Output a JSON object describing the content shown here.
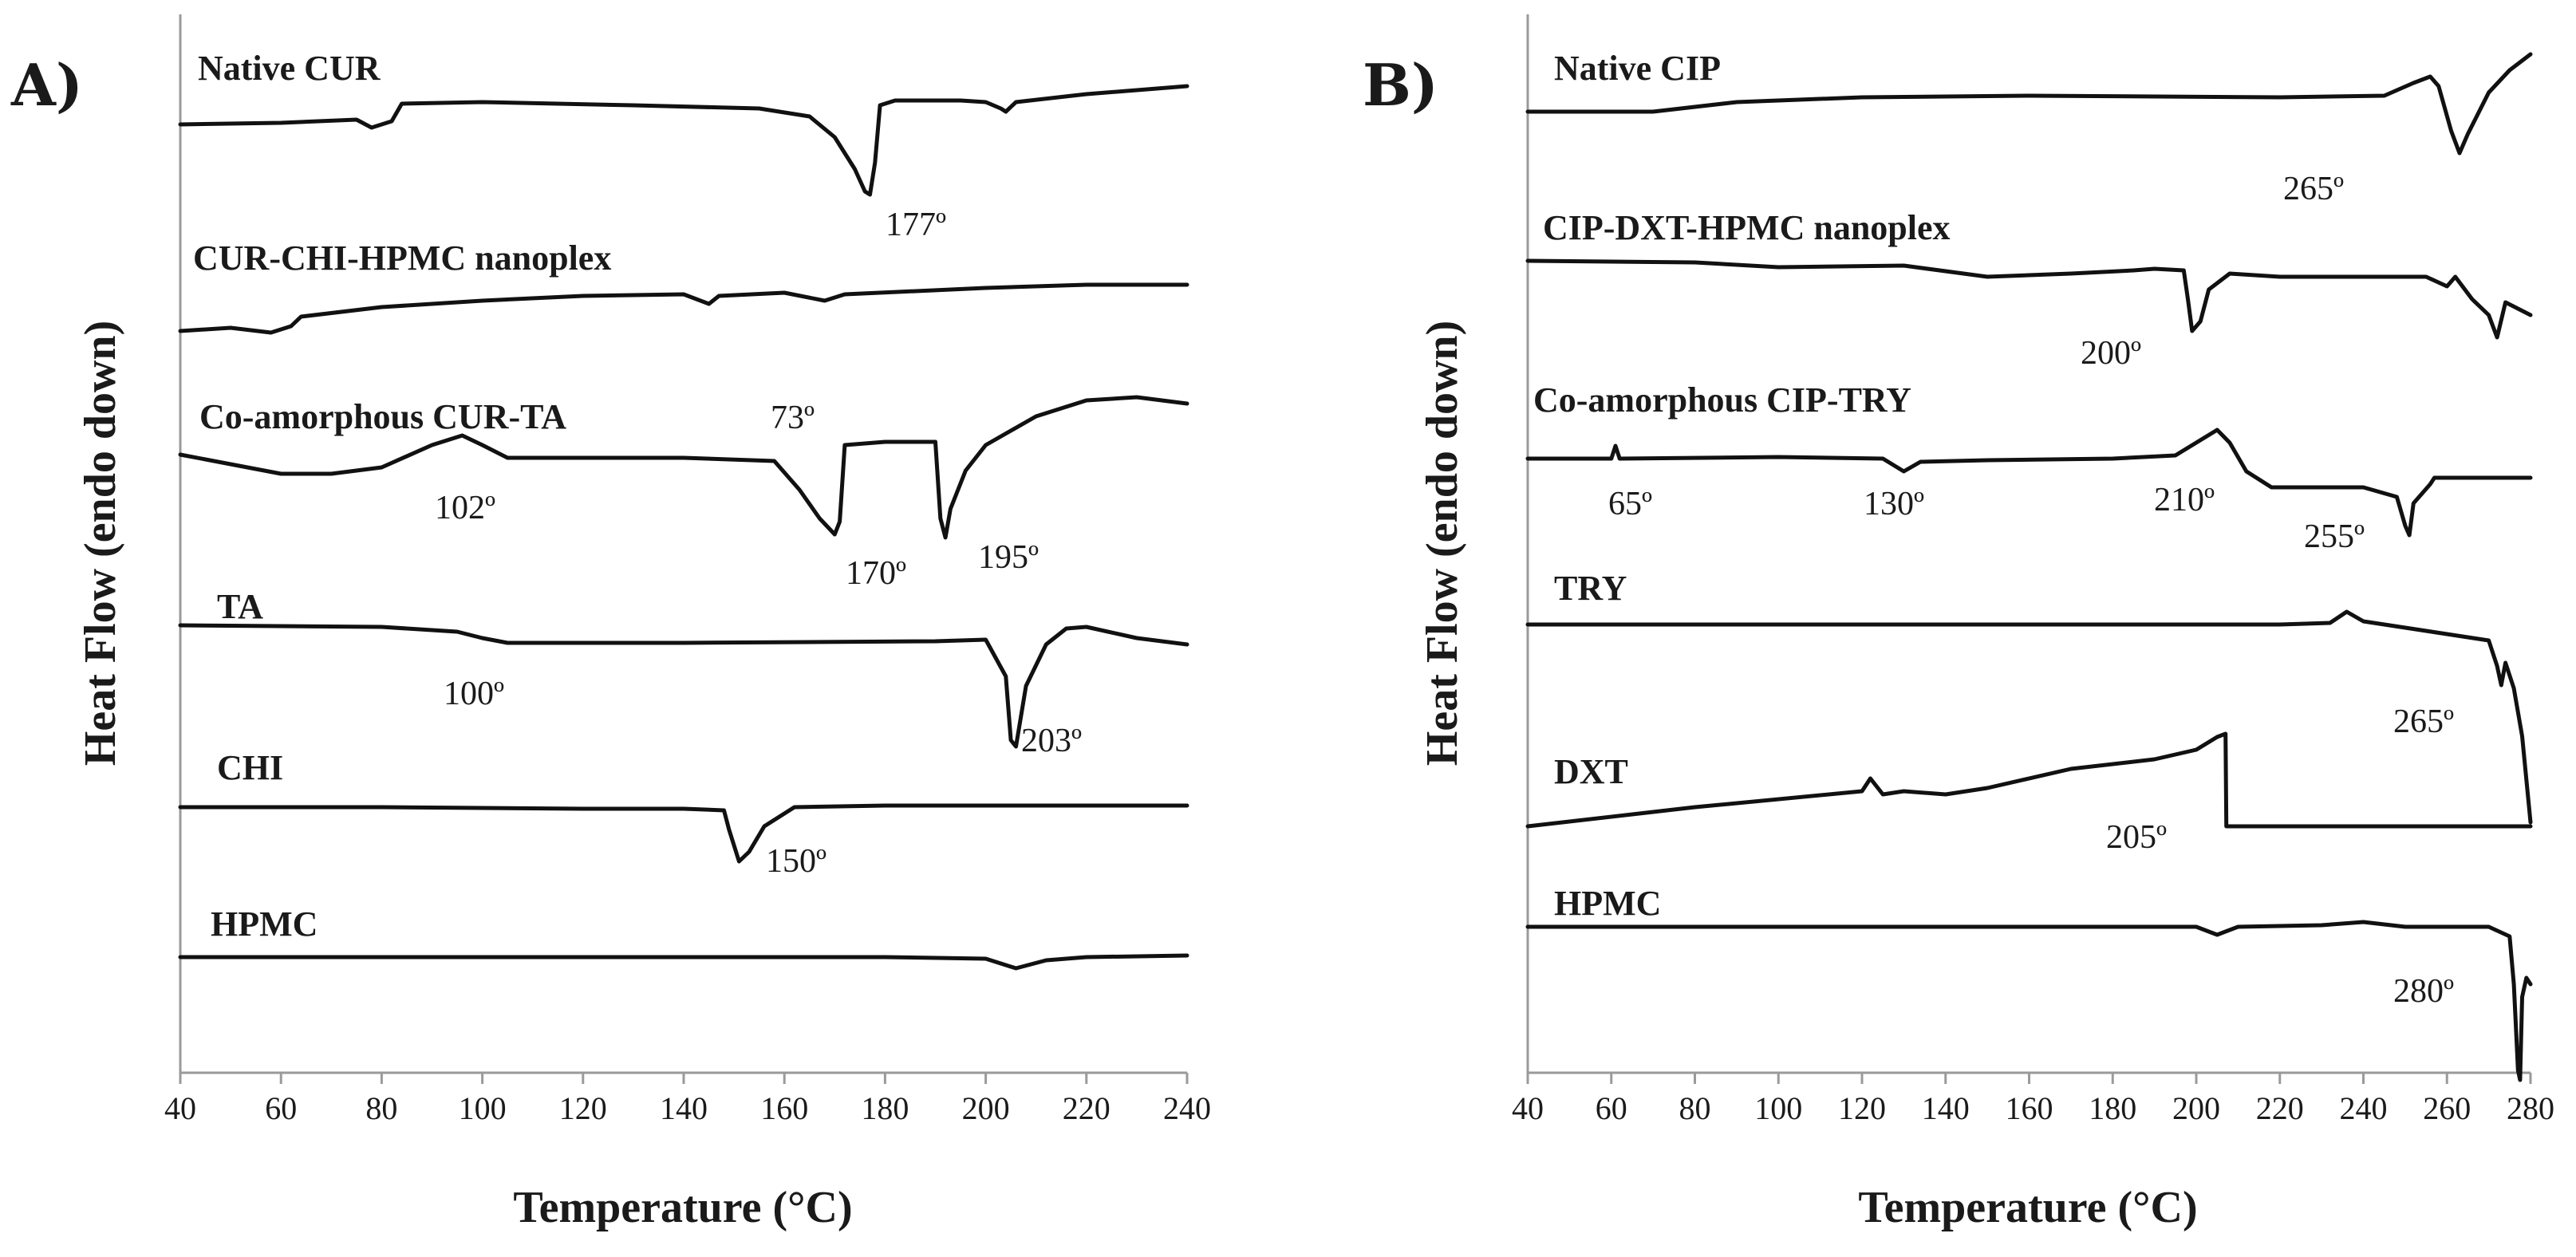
{
  "chart_data": [
    {
      "panel": "A)",
      "type": "line",
      "title": "",
      "xlabel": "Temperature (°C)",
      "ylabel": "Heat Flow (endo down)",
      "xlim": [
        40,
        240
      ],
      "xticks": [
        40,
        60,
        80,
        100,
        120,
        140,
        160,
        180,
        200,
        220,
        240
      ],
      "grid": false,
      "series": [
        {
          "name": "Native CUR",
          "points": [
            [
              40,
              -0.2
            ],
            [
              60,
              -0.15
            ],
            [
              75,
              -0.05
            ],
            [
              78,
              -0.3
            ],
            [
              82,
              -0.1
            ],
            [
              84,
              0.45
            ],
            [
              100,
              0.5
            ],
            [
              130,
              0.4
            ],
            [
              155,
              0.3
            ],
            [
              165,
              0.05
            ],
            [
              170,
              -0.6
            ],
            [
              174,
              -1.6
            ],
            [
              176,
              -2.3
            ],
            [
              177,
              -2.4
            ],
            [
              178,
              -1.4
            ],
            [
              179,
              0.4
            ],
            [
              182,
              0.55
            ],
            [
              195,
              0.55
            ],
            [
              200,
              0.5
            ],
            [
              203,
              0.3
            ],
            [
              204,
              0.2
            ],
            [
              206,
              0.5
            ],
            [
              220,
              0.75
            ],
            [
              240,
              1.0
            ]
          ],
          "annotations": [
            {
              "label": "177º",
              "x": 177,
              "y": -2.4
            }
          ]
        },
        {
          "name": "CUR-CHI-HPMC nanoplex",
          "points": [
            [
              40,
              -0.25
            ],
            [
              50,
              -0.15
            ],
            [
              58,
              -0.3
            ],
            [
              62,
              -0.1
            ],
            [
              64,
              0.2
            ],
            [
              80,
              0.5
            ],
            [
              100,
              0.7
            ],
            [
              120,
              0.85
            ],
            [
              140,
              0.9
            ],
            [
              145,
              0.6
            ],
            [
              147,
              0.85
            ],
            [
              160,
              0.95
            ],
            [
              168,
              0.7
            ],
            [
              172,
              0.9
            ],
            [
              200,
              1.1
            ],
            [
              220,
              1.2
            ],
            [
              240,
              1.2
            ]
          ],
          "annotations": []
        },
        {
          "name": "Co-amorphous CUR-TA",
          "points": [
            [
              40,
              0.2
            ],
            [
              50,
              -0.1
            ],
            [
              60,
              -0.4
            ],
            [
              70,
              -0.4
            ],
            [
              80,
              -0.2
            ],
            [
              90,
              0.5
            ],
            [
              96,
              0.8
            ],
            [
              100,
              0.5
            ],
            [
              105,
              0.1
            ],
            [
              120,
              0.1
            ],
            [
              140,
              0.1
            ],
            [
              158,
              0.0
            ],
            [
              163,
              -0.9
            ],
            [
              167,
              -1.8
            ],
            [
              170,
              -2.3
            ],
            [
              171,
              -1.9
            ],
            [
              172,
              0.5
            ],
            [
              180,
              0.6
            ],
            [
              190,
              0.6
            ],
            [
              191,
              -1.8
            ],
            [
              192,
              -2.4
            ],
            [
              193,
              -1.5
            ],
            [
              196,
              -0.3
            ],
            [
              200,
              0.5
            ],
            [
              210,
              1.4
            ],
            [
              220,
              1.9
            ],
            [
              230,
              2.0
            ],
            [
              240,
              1.8
            ]
          ],
          "annotations": [
            {
              "label": "73º",
              "x": 170,
              "y": 1.3
            },
            {
              "label": "102º",
              "x": 96,
              "y": 0.8
            },
            {
              "label": "170º",
              "x": 170,
              "y": -2.3
            },
            {
              "label": "195º",
              "x": 192,
              "y": -2.4
            }
          ]
        },
        {
          "name": "TA",
          "points": [
            [
              40,
              0.4
            ],
            [
              80,
              0.35
            ],
            [
              95,
              0.2
            ],
            [
              100,
              0.0
            ],
            [
              105,
              -0.15
            ],
            [
              140,
              -0.15
            ],
            [
              190,
              -0.1
            ],
            [
              200,
              -0.05
            ],
            [
              204,
              -1.2
            ],
            [
              205,
              -3.2
            ],
            [
              206,
              -3.4
            ],
            [
              208,
              -1.5
            ],
            [
              212,
              -0.2
            ],
            [
              216,
              0.3
            ],
            [
              220,
              0.35
            ],
            [
              230,
              0.0
            ],
            [
              240,
              -0.2
            ]
          ],
          "annotations": [
            {
              "label": "100º",
              "x": 100,
              "y": -0.15
            },
            {
              "label": "203º",
              "x": 205,
              "y": -3.4
            }
          ]
        },
        {
          "name": "CHI",
          "points": [
            [
              40,
              0.0
            ],
            [
              80,
              0.0
            ],
            [
              120,
              -0.05
            ],
            [
              140,
              -0.05
            ],
            [
              148,
              -0.1
            ],
            [
              149,
              -0.7
            ],
            [
              151,
              -1.7
            ],
            [
              153,
              -1.4
            ],
            [
              156,
              -0.6
            ],
            [
              162,
              0.0
            ],
            [
              180,
              0.05
            ],
            [
              240,
              0.05
            ]
          ],
          "annotations": [
            {
              "label": "150º",
              "x": 151,
              "y": -1.7
            }
          ]
        },
        {
          "name": "HPMC",
          "points": [
            [
              40,
              0.0
            ],
            [
              120,
              0.0
            ],
            [
              180,
              0.0
            ],
            [
              200,
              -0.05
            ],
            [
              206,
              -0.35
            ],
            [
              212,
              -0.1
            ],
            [
              220,
              0.0
            ],
            [
              240,
              0.05
            ]
          ],
          "annotations": []
        }
      ]
    },
    {
      "panel": "B)",
      "type": "line",
      "title": "",
      "xlabel": "Temperature (°C)",
      "ylabel": "Heat Flow (endo down)",
      "xlim": [
        40,
        280
      ],
      "xticks": [
        40,
        60,
        80,
        100,
        120,
        140,
        160,
        180,
        200,
        220,
        240,
        260,
        280
      ],
      "grid": false,
      "series": [
        {
          "name": "Native CIP",
          "points": [
            [
              40,
              0.0
            ],
            [
              70,
              0.0
            ],
            [
              90,
              0.3
            ],
            [
              120,
              0.45
            ],
            [
              160,
              0.5
            ],
            [
              220,
              0.45
            ],
            [
              245,
              0.5
            ],
            [
              252,
              0.9
            ],
            [
              256,
              1.1
            ],
            [
              258,
              0.8
            ],
            [
              261,
              -0.6
            ],
            [
              263,
              -1.3
            ],
            [
              265,
              -0.7
            ],
            [
              270,
              0.6
            ],
            [
              275,
              1.3
            ],
            [
              280,
              1.8
            ]
          ],
          "annotations": [
            {
              "label": "265º",
              "x": 263,
              "y": -1.3
            }
          ]
        },
        {
          "name": "CIP-DXT-HPMC nanoplex",
          "points": [
            [
              40,
              0.2
            ],
            [
              80,
              0.15
            ],
            [
              100,
              0.0
            ],
            [
              130,
              0.05
            ],
            [
              150,
              -0.3
            ],
            [
              170,
              -0.2
            ],
            [
              185,
              -0.1
            ],
            [
              190,
              -0.05
            ],
            [
              197,
              -0.1
            ],
            [
              198,
              -1.0
            ],
            [
              199,
              -2.0
            ],
            [
              201,
              -1.7
            ],
            [
              203,
              -0.7
            ],
            [
              208,
              -0.2
            ],
            [
              220,
              -0.3
            ],
            [
              255,
              -0.3
            ],
            [
              260,
              -0.6
            ],
            [
              262,
              -0.3
            ],
            [
              266,
              -1.0
            ],
            [
              270,
              -1.5
            ],
            [
              272,
              -2.2
            ],
            [
              274,
              -1.1
            ],
            [
              280,
              -1.5
            ]
          ],
          "annotations": [
            {
              "label": "200º",
              "x": 199,
              "y": -2.0
            }
          ]
        },
        {
          "name": "Co-amorphous CIP-TRY",
          "points": [
            [
              40,
              0.0
            ],
            [
              60,
              0.0
            ],
            [
              61,
              0.4
            ],
            [
              62,
              0.0
            ],
            [
              100,
              0.05
            ],
            [
              125,
              0.0
            ],
            [
              130,
              -0.4
            ],
            [
              134,
              -0.1
            ],
            [
              150,
              -0.05
            ],
            [
              180,
              0.0
            ],
            [
              195,
              0.1
            ],
            [
              200,
              0.5
            ],
            [
              205,
              0.9
            ],
            [
              208,
              0.5
            ],
            [
              212,
              -0.4
            ],
            [
              218,
              -0.9
            ],
            [
              240,
              -0.9
            ],
            [
              248,
              -1.2
            ],
            [
              250,
              -2.1
            ],
            [
              251,
              -2.4
            ],
            [
              252,
              -1.4
            ],
            [
              256,
              -0.8
            ],
            [
              257,
              -0.6
            ],
            [
              280,
              -0.6
            ]
          ],
          "annotations": [
            {
              "label": "65º",
              "x": 61,
              "y": 0.0
            },
            {
              "label": "130º",
              "x": 130,
              "y": -0.4
            },
            {
              "label": "210º",
              "x": 205,
              "y": 0.9
            },
            {
              "label": "255º",
              "x": 251,
              "y": -2.4
            }
          ]
        },
        {
          "name": "TRY",
          "points": [
            [
              40,
              0.0
            ],
            [
              150,
              0.0
            ],
            [
              220,
              0.0
            ],
            [
              232,
              0.05
            ],
            [
              236,
              0.4
            ],
            [
              240,
              0.1
            ],
            [
              270,
              -0.5
            ],
            [
              272,
              -1.3
            ],
            [
              273,
              -1.9
            ],
            [
              274,
              -1.2
            ],
            [
              276,
              -2.0
            ],
            [
              278,
              -3.5
            ],
            [
              280,
              -6.2
            ]
          ],
          "annotations": [
            {
              "label": "265º",
              "x": 278,
              "y": -3.5
            }
          ]
        },
        {
          "name": "DXT",
          "points": [
            [
              40,
              -0.6
            ],
            [
              80,
              0.0
            ],
            [
              120,
              0.5
            ],
            [
              122,
              0.9
            ],
            [
              125,
              0.4
            ],
            [
              130,
              0.5
            ],
            [
              140,
              0.4
            ],
            [
              150,
              0.6
            ],
            [
              170,
              1.2
            ],
            [
              190,
              1.5
            ],
            [
              200,
              1.8
            ],
            [
              205,
              2.2
            ],
            [
              207,
              2.3
            ],
            [
              207.2,
              -0.6
            ],
            [
              280,
              -0.6
            ]
          ],
          "annotations": [
            {
              "label": "205º",
              "x": 207,
              "y": 0.6
            }
          ]
        },
        {
          "name": "HPMC",
          "points": [
            [
              40,
              0.0
            ],
            [
              150,
              0.0
            ],
            [
              200,
              0.0
            ],
            [
              205,
              -0.25
            ],
            [
              210,
              0.0
            ],
            [
              230,
              0.05
            ],
            [
              240,
              0.15
            ],
            [
              250,
              0.0
            ],
            [
              270,
              0.0
            ],
            [
              275,
              -0.3
            ],
            [
              276,
              -1.8
            ],
            [
              277,
              -4.5
            ],
            [
              277.5,
              -4.8
            ],
            [
              278,
              -2.2
            ],
            [
              279,
              -1.6
            ],
            [
              280,
              -1.8
            ]
          ],
          "annotations": [
            {
              "label": "280º",
              "x": 277,
              "y": -4.8
            }
          ]
        }
      ]
    }
  ]
}
